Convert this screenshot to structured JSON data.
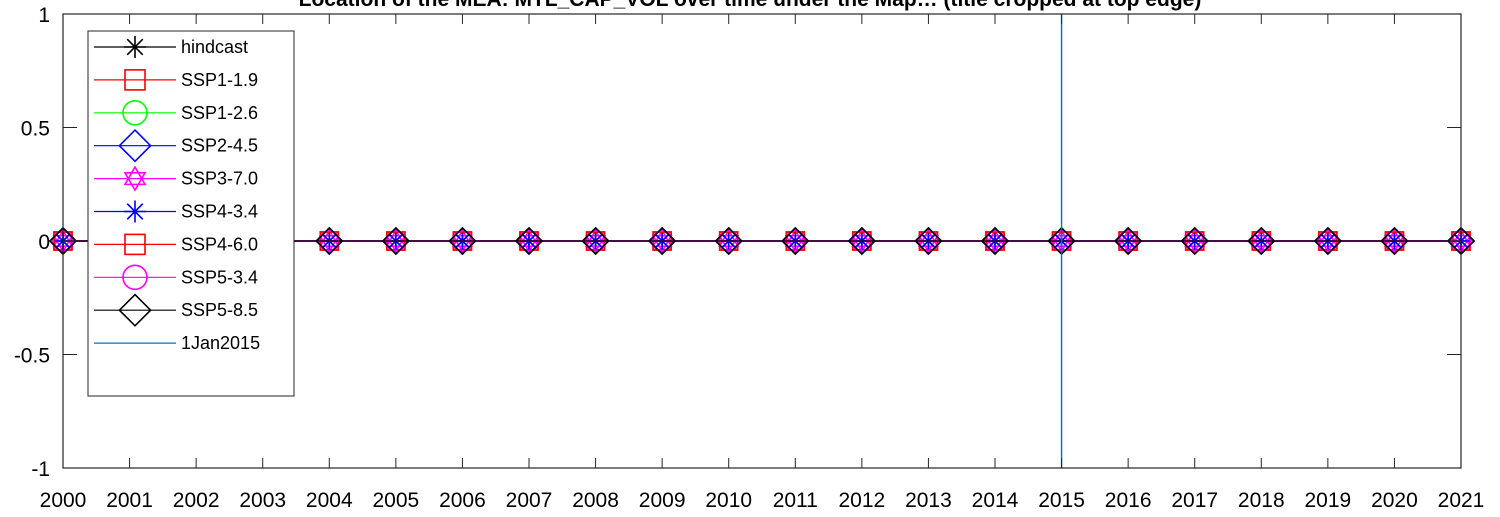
{
  "chart_data": {
    "type": "line",
    "title": "",
    "title_fragment": "Location of the MEA: MTL_CAP_VOL over time under the Map… (title cropped at top edge)",
    "xlabel": "",
    "ylabel": "",
    "x": [
      2000,
      2001,
      2002,
      2003,
      2004,
      2005,
      2006,
      2007,
      2008,
      2009,
      2010,
      2011,
      2012,
      2013,
      2014,
      2015,
      2016,
      2017,
      2018,
      2019,
      2020,
      2021
    ],
    "x_tick_labels": [
      "2000",
      "2001",
      "2002",
      "2003",
      "2004",
      "2005",
      "2006",
      "2007",
      "2008",
      "2009",
      "2010",
      "2011",
      "2012",
      "2013",
      "2014",
      "2015",
      "2016",
      "2017",
      "2018",
      "2019",
      "2020",
      "2021"
    ],
    "y_tick_labels": [
      "-1",
      "-0.5",
      "0",
      "0.5",
      "1"
    ],
    "y_ticks": [
      -1,
      -0.5,
      0,
      0.5,
      1
    ],
    "xlim": [
      2000,
      2021
    ],
    "ylim": [
      -1,
      1
    ],
    "grid": false,
    "legend_position": "top-left",
    "marker_x": [
      2000,
      2004,
      2005,
      2006,
      2007,
      2008,
      2009,
      2010,
      2011,
      2012,
      2013,
      2014,
      2015,
      2016,
      2017,
      2018,
      2019,
      2020,
      2021
    ],
    "series": [
      {
        "name": "hindcast",
        "color": "#000000",
        "marker": "asterisk",
        "values": [
          0,
          0,
          0,
          0,
          0,
          0,
          0,
          0,
          0,
          0,
          0,
          0,
          0,
          0,
          0,
          0,
          0,
          0,
          0,
          0,
          0,
          0
        ]
      },
      {
        "name": "SSP1-1.9",
        "color": "#ff0000",
        "marker": "square",
        "values": [
          0,
          0,
          0,
          0,
          0,
          0,
          0,
          0,
          0,
          0,
          0,
          0,
          0,
          0,
          0,
          0,
          0,
          0,
          0,
          0,
          0,
          0
        ]
      },
      {
        "name": "SSP1-2.6",
        "color": "#00ff00",
        "marker": "circle",
        "values": [
          0,
          0,
          0,
          0,
          0,
          0,
          0,
          0,
          0,
          0,
          0,
          0,
          0,
          0,
          0,
          0,
          0,
          0,
          0,
          0,
          0,
          0
        ]
      },
      {
        "name": "SSP2-4.5",
        "color": "#0000ff",
        "marker": "diamond",
        "values": [
          0,
          0,
          0,
          0,
          0,
          0,
          0,
          0,
          0,
          0,
          0,
          0,
          0,
          0,
          0,
          0,
          0,
          0,
          0,
          0,
          0,
          0
        ]
      },
      {
        "name": "SSP3-7.0",
        "color": "#ff00ff",
        "marker": "hexagram",
        "values": [
          0,
          0,
          0,
          0,
          0,
          0,
          0,
          0,
          0,
          0,
          0,
          0,
          0,
          0,
          0,
          0,
          0,
          0,
          0,
          0,
          0,
          0
        ]
      },
      {
        "name": "SSP4-3.4",
        "color": "#0000ff",
        "marker": "asterisk",
        "values": [
          0,
          0,
          0,
          0,
          0,
          0,
          0,
          0,
          0,
          0,
          0,
          0,
          0,
          0,
          0,
          0,
          0,
          0,
          0,
          0,
          0,
          0
        ]
      },
      {
        "name": "SSP4-6.0",
        "color": "#ff0000",
        "marker": "square",
        "values": [
          0,
          0,
          0,
          0,
          0,
          0,
          0,
          0,
          0,
          0,
          0,
          0,
          0,
          0,
          0,
          0,
          0,
          0,
          0,
          0,
          0,
          0
        ]
      },
      {
        "name": "SSP5-3.4",
        "color": "#ff00ff",
        "marker": "circle",
        "values": [
          0,
          0,
          0,
          0,
          0,
          0,
          0,
          0,
          0,
          0,
          0,
          0,
          0,
          0,
          0,
          0,
          0,
          0,
          0,
          0,
          0,
          0
        ]
      },
      {
        "name": "SSP5-8.5",
        "color": "#000000",
        "marker": "diamond",
        "values": [
          0,
          0,
          0,
          0,
          0,
          0,
          0,
          0,
          0,
          0,
          0,
          0,
          0,
          0,
          0,
          0,
          0,
          0,
          0,
          0,
          0,
          0
        ]
      }
    ],
    "reference_line": {
      "name": "1Jan2015",
      "x": 2015,
      "color": "#0072bd"
    }
  }
}
